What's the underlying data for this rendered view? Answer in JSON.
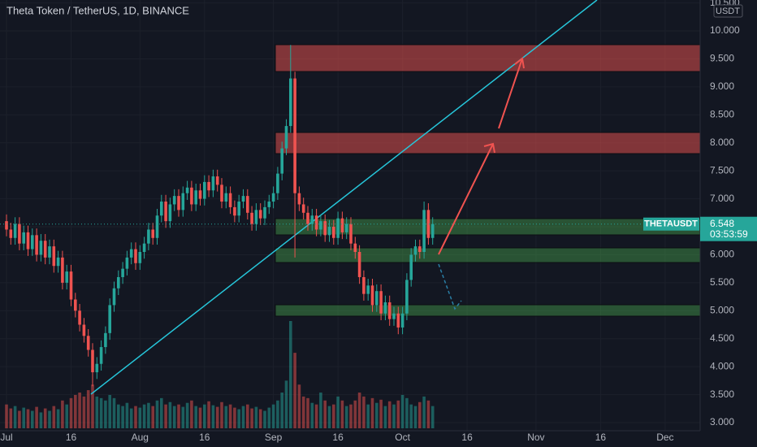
{
  "chart_data": {
    "type": "candlestick",
    "title": "Theta Token / TetherUS, 1D, BINANCE",
    "currency": "USDT",
    "symbol_label": "THETAUSDT",
    "last_price": 6.548,
    "countdown": "03:53:59",
    "up_color": "#26a69a",
    "down_color": "#ef5350",
    "categories": [
      "Jul",
      null,
      null,
      null,
      null,
      null,
      null,
      null,
      null,
      null,
      null,
      null,
      null,
      null,
      null,
      "16",
      null,
      null,
      null,
      null,
      null,
      null,
      null,
      null,
      null,
      null,
      null,
      null,
      null,
      null,
      null,
      "Aug",
      null,
      null,
      null,
      null,
      null,
      null,
      null,
      null,
      null,
      null,
      null,
      null,
      null,
      null,
      "16",
      null,
      null,
      null,
      null,
      null,
      null,
      null,
      null,
      null,
      null,
      null,
      null,
      null,
      null,
      null,
      "Sep",
      null,
      null,
      null,
      null,
      null,
      null,
      null,
      null,
      null,
      null,
      null,
      null,
      null,
      null,
      "16",
      null,
      null,
      null,
      null,
      null,
      null,
      null,
      null,
      null,
      null,
      null,
      null,
      null,
      null,
      "Oct",
      null,
      null,
      null,
      null,
      null,
      null,
      null,
      null,
      null,
      null,
      null,
      null,
      null,
      null,
      "16",
      null,
      null,
      null,
      null,
      null,
      null,
      null,
      null,
      null,
      null,
      null,
      null,
      null,
      null,
      null,
      "Nov",
      null,
      null,
      null,
      null,
      null,
      null,
      null,
      null,
      null,
      null,
      null,
      null,
      null,
      null,
      "16",
      null,
      null,
      null,
      null,
      null,
      null,
      null,
      null,
      null,
      null,
      null,
      null,
      null,
      null,
      "Dec",
      null,
      null,
      null,
      null,
      null,
      null,
      null
    ],
    "open": [
      6.6,
      6.45,
      6.3,
      6.55,
      6.2,
      6.4,
      6.1,
      6.35,
      6.0,
      6.25,
      5.95,
      6.15,
      5.8,
      5.95,
      5.5,
      5.7,
      5.2,
      5.0,
      4.75,
      4.55,
      4.3,
      3.9,
      4.05,
      4.35,
      4.6,
      5.1,
      5.4,
      5.6,
      5.75,
      5.95,
      6.1,
      5.85,
      6.05,
      6.2,
      6.45,
      6.3,
      6.7,
      6.95,
      6.6,
      6.9,
      7.05,
      6.8,
      7.1,
      7.2,
      6.9,
      7.15,
      7.0,
      7.3,
      7.15,
      7.4,
      7.25,
      6.95,
      7.1,
      6.85,
      6.7,
      6.95,
      7.05,
      6.75,
      6.55,
      6.8,
      6.65,
      6.85,
      6.95,
      7.1,
      7.45,
      7.9,
      8.3,
      9.15,
      7.1,
      6.9,
      6.75,
      6.55,
      6.7,
      6.45,
      6.6,
      6.35,
      6.5,
      6.3,
      6.65,
      6.4,
      6.55,
      6.2,
      6.05,
      5.6,
      5.3,
      5.45,
      5.1,
      5.35,
      4.95,
      5.15,
      4.85,
      4.95,
      4.7,
      4.95,
      5.55,
      6.0,
      6.15,
      6.05,
      6.8,
      6.3,
      null,
      null,
      null,
      null,
      null,
      null,
      null,
      null,
      null,
      null,
      null,
      null,
      null,
      null,
      null,
      null,
      null,
      null,
      null,
      null,
      null,
      null,
      null,
      null,
      null,
      null,
      null,
      null,
      null,
      null,
      null,
      null,
      null,
      null,
      null,
      null,
      null,
      null,
      null,
      null,
      null,
      null,
      null,
      null,
      null,
      null,
      null,
      null,
      null,
      null,
      null,
      null,
      null,
      null,
      null,
      null,
      null,
      null,
      null,
      null,
      null
    ],
    "high": [
      6.72,
      6.57,
      6.67,
      6.67,
      6.52,
      6.52,
      6.47,
      6.47,
      6.37,
      6.37,
      6.27,
      6.27,
      6.07,
      6.07,
      5.82,
      5.82,
      5.32,
      5.12,
      4.87,
      4.67,
      4.42,
      4.17,
      4.47,
      4.72,
      5.22,
      5.52,
      5.72,
      5.87,
      6.07,
      6.22,
      6.22,
      6.17,
      6.32,
      6.57,
      6.57,
      6.82,
      7.07,
      7.07,
      7.02,
      7.17,
      7.17,
      7.22,
      7.32,
      7.32,
      7.27,
      7.27,
      7.42,
      7.42,
      7.52,
      7.52,
      7.37,
      7.22,
      7.22,
      6.97,
      7.07,
      7.17,
      7.17,
      6.87,
      6.92,
      6.92,
      6.97,
      7.07,
      7.22,
      7.57,
      8.02,
      8.42,
      9.75,
      9.27,
      7.22,
      7.02,
      6.87,
      6.82,
      6.82,
      6.72,
      6.72,
      6.62,
      6.62,
      6.77,
      6.77,
      6.67,
      6.67,
      6.32,
      6.17,
      5.72,
      5.57,
      5.57,
      5.47,
      5.47,
      5.27,
      5.27,
      5.07,
      5.07,
      5.07,
      5.67,
      6.12,
      6.27,
      6.27,
      6.95,
      6.92,
      6.67,
      null,
      null,
      null,
      null,
      null,
      null,
      null,
      null,
      null,
      null,
      null,
      null,
      null,
      null,
      null,
      null,
      null,
      null,
      null,
      null,
      null,
      null,
      null,
      null,
      null,
      null,
      null,
      null,
      null,
      null,
      null,
      null,
      null,
      null,
      null,
      null,
      null,
      null,
      null,
      null,
      null,
      null,
      null,
      null,
      null,
      null,
      null,
      null,
      null,
      null,
      null,
      null,
      null,
      null,
      null,
      null,
      null,
      null,
      null,
      null,
      null
    ],
    "low": [
      6.33,
      6.18,
      6.18,
      6.08,
      6.08,
      5.98,
      5.98,
      5.88,
      5.88,
      5.83,
      5.83,
      5.68,
      5.68,
      5.38,
      5.38,
      5.08,
      4.88,
      4.63,
      4.43,
      4.18,
      3.65,
      3.78,
      3.93,
      4.23,
      4.48,
      4.98,
      5.28,
      5.48,
      5.63,
      5.83,
      5.73,
      5.73,
      5.93,
      6.08,
      6.18,
      6.18,
      6.58,
      6.48,
      6.48,
      6.78,
      6.68,
      6.68,
      6.98,
      6.78,
      6.78,
      6.88,
      6.88,
      7.03,
      7.03,
      7.13,
      6.83,
      6.83,
      6.73,
      6.58,
      6.58,
      6.83,
      6.63,
      6.43,
      6.43,
      6.53,
      6.53,
      6.73,
      6.83,
      6.98,
      7.33,
      7.78,
      8.18,
      5.95,
      6.78,
      6.63,
      6.43,
      6.43,
      6.33,
      6.33,
      6.23,
      6.23,
      6.18,
      6.18,
      6.28,
      6.28,
      6.08,
      5.93,
      5.48,
      5.18,
      5.18,
      4.98,
      4.98,
      4.83,
      4.83,
      4.73,
      4.73,
      4.58,
      4.58,
      4.83,
      5.43,
      5.88,
      5.93,
      5.93,
      6.18,
      6.18,
      null,
      null,
      null,
      null,
      null,
      null,
      null,
      null,
      null,
      null,
      null,
      null,
      null,
      null,
      null,
      null,
      null,
      null,
      null,
      null,
      null,
      null,
      null,
      null,
      null,
      null,
      null,
      null,
      null,
      null,
      null,
      null,
      null,
      null,
      null,
      null,
      null,
      null,
      null,
      null,
      null,
      null,
      null,
      null,
      null,
      null,
      null,
      null,
      null,
      null,
      null,
      null,
      null,
      null,
      null,
      null,
      null,
      null,
      null,
      null,
      null
    ],
    "close": [
      6.45,
      6.3,
      6.55,
      6.2,
      6.4,
      6.1,
      6.35,
      6.0,
      6.25,
      5.95,
      6.15,
      5.8,
      5.95,
      5.5,
      5.7,
      5.2,
      5.0,
      4.75,
      4.55,
      4.3,
      3.9,
      4.05,
      4.35,
      4.6,
      5.1,
      5.4,
      5.6,
      5.75,
      5.95,
      6.1,
      5.85,
      6.05,
      6.2,
      6.45,
      6.3,
      6.7,
      6.95,
      6.6,
      6.9,
      7.05,
      6.8,
      7.1,
      7.2,
      6.9,
      7.15,
      7.0,
      7.3,
      7.15,
      7.4,
      7.25,
      6.95,
      7.1,
      6.85,
      6.7,
      6.95,
      7.05,
      6.75,
      6.55,
      6.8,
      6.65,
      6.85,
      6.95,
      7.1,
      7.45,
      7.9,
      8.3,
      9.15,
      7.1,
      6.9,
      6.75,
      6.55,
      6.7,
      6.45,
      6.6,
      6.35,
      6.5,
      6.3,
      6.65,
      6.4,
      6.55,
      6.2,
      6.05,
      5.6,
      5.3,
      5.45,
      5.1,
      5.35,
      4.95,
      5.15,
      4.85,
      4.95,
      4.7,
      4.95,
      5.55,
      6.0,
      6.15,
      6.05,
      6.8,
      6.3,
      6.55,
      null,
      null,
      null,
      null,
      null,
      null,
      null,
      null,
      null,
      null,
      null,
      null,
      null,
      null,
      null,
      null,
      null,
      null,
      null,
      null,
      null,
      null,
      null,
      null,
      null,
      null,
      null,
      null,
      null,
      null,
      null,
      null,
      null,
      null,
      null,
      null,
      null,
      null,
      null,
      null,
      null,
      null,
      null,
      null,
      null,
      null,
      null,
      null,
      null,
      null,
      null,
      null,
      null,
      null,
      null,
      null,
      null,
      null,
      null,
      null,
      null
    ],
    "volume": [
      30,
      25,
      28,
      22,
      26,
      24,
      22,
      27,
      20,
      25,
      22,
      28,
      24,
      35,
      30,
      38,
      42,
      45,
      40,
      48,
      55,
      40,
      38,
      35,
      42,
      38,
      30,
      28,
      32,
      25,
      28,
      26,
      30,
      32,
      28,
      35,
      38,
      30,
      33,
      28,
      30,
      27,
      32,
      35,
      28,
      26,
      30,
      34,
      29,
      27,
      33,
      28,
      30,
      26,
      24,
      28,
      30,
      25,
      27,
      24,
      22,
      26,
      30,
      35,
      45,
      60,
      135,
      95,
      55,
      40,
      38,
      32,
      30,
      45,
      35,
      28,
      30,
      40,
      35,
      28,
      30,
      35,
      45,
      40,
      30,
      38,
      32,
      36,
      28,
      34,
      30,
      35,
      42,
      38,
      30,
      28,
      33,
      40,
      35,
      28,
      null,
      null,
      null,
      null,
      null,
      null,
      null,
      null,
      null,
      null,
      null,
      null,
      null,
      null,
      null,
      null,
      null,
      null,
      null,
      null,
      null,
      null,
      null,
      null,
      null,
      null,
      null,
      null,
      null,
      null,
      null,
      null,
      null,
      null,
      null,
      null,
      null,
      null,
      null,
      null,
      null,
      null,
      null,
      null,
      null,
      null,
      null,
      null,
      null,
      null,
      null,
      null,
      null,
      null,
      null,
      null,
      null,
      null,
      null,
      null,
      null
    ],
    "ylim": [
      2.855,
      10.552
    ],
    "yticks": [
      {
        "value": 3,
        "label": "3.000"
      },
      {
        "value": 3.5,
        "label": "3.500"
      },
      {
        "value": 4,
        "label": "4.000"
      },
      {
        "value": 4.5,
        "label": "4.500"
      },
      {
        "value": 5,
        "label": "5.000"
      },
      {
        "value": 5.5,
        "label": "5.500"
      },
      {
        "value": 6,
        "label": "6.000"
      },
      {
        "value": 6.5,
        "label": "6.500"
      },
      {
        "value": 7,
        "label": "7.000"
      },
      {
        "value": 7.5,
        "label": "7.500"
      },
      {
        "value": 8,
        "label": "8.000"
      },
      {
        "value": 8.5,
        "label": "8.500"
      },
      {
        "value": 9,
        "label": "9.000"
      },
      {
        "value": 9.5,
        "label": "9.500"
      },
      {
        "value": 10,
        "label": "10.000"
      },
      {
        "value": 10.5,
        "label": "10.500"
      }
    ],
    "grid": true
  }
}
